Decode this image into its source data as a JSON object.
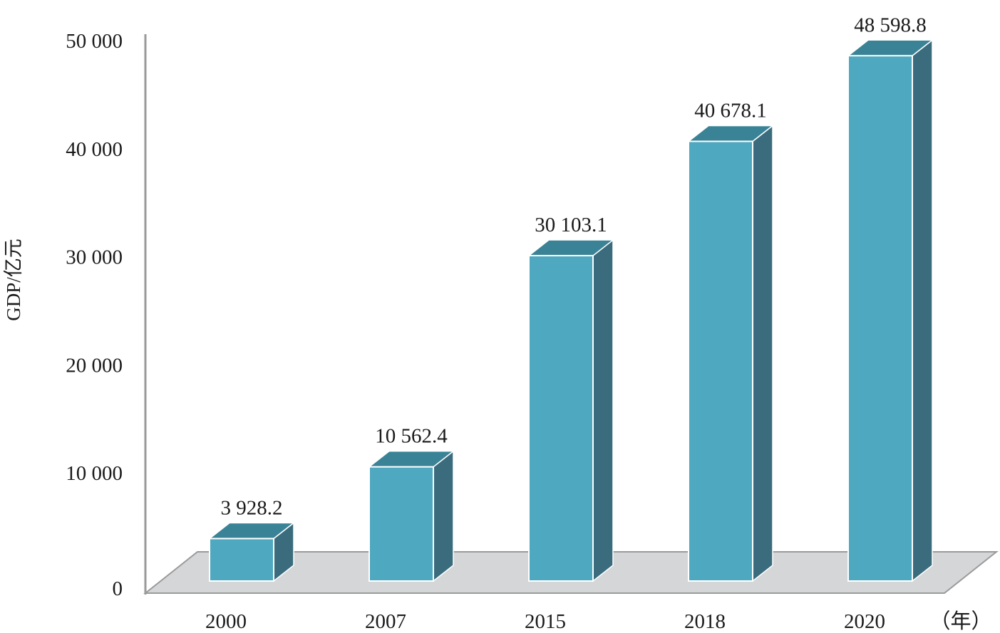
{
  "chart_data": {
    "type": "bar",
    "categories": [
      "2000",
      "2007",
      "2015",
      "2018",
      "2020"
    ],
    "values": [
      3928.2,
      10562.4,
      30103.1,
      40678.1,
      48598.8
    ],
    "value_labels": [
      "3 928.2",
      "10 562.4",
      "30 103.1",
      "40 678.1",
      "48 598.8"
    ],
    "ylabel": "GDP/亿元",
    "x_unit": "（年）",
    "ylim": [
      0,
      50000
    ],
    "yticks": [
      0,
      10000,
      20000,
      30000,
      40000,
      50000
    ],
    "ytick_labels": [
      "0",
      "10 000",
      "20 000",
      "30 000",
      "40 000",
      "50 000"
    ],
    "style": "3d-column",
    "grid": false,
    "legend": "none",
    "colors": {
      "bar_front": "#4ea8bf",
      "bar_top": "#3a8396",
      "bar_side": "#3a6c7d",
      "floor": "#d4d6d8",
      "axis": "#9a9a9a"
    }
  }
}
